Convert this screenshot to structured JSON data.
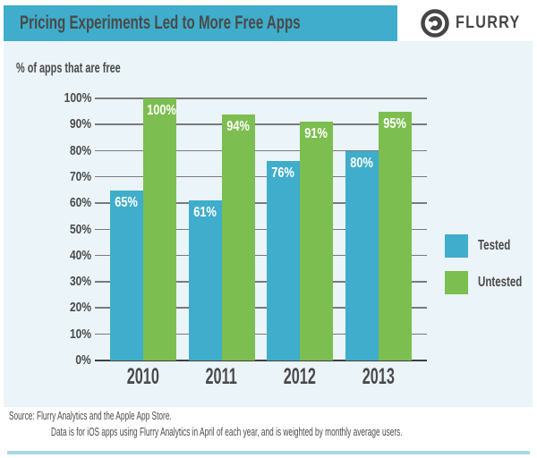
{
  "header": {
    "title": "Pricing Experiments Led to More Free Apps",
    "brand": "FLURRY"
  },
  "chart_data": {
    "type": "bar",
    "title": "Pricing Experiments Led to More Free Apps",
    "ylabel": "% of apps that are free",
    "categories": [
      "2010",
      "2011",
      "2012",
      "2013"
    ],
    "series": [
      {
        "name": "Tested",
        "color": "#3fadcb",
        "values": [
          65,
          61,
          76,
          80
        ]
      },
      {
        "name": "Untested",
        "color": "#7cbe50",
        "values": [
          100,
          94,
          91,
          95
        ]
      }
    ],
    "value_suffix": "%",
    "bar_value_labels": [
      [
        "65%",
        "100%"
      ],
      [
        "61%",
        "94%"
      ],
      [
        "76%",
        "91%"
      ],
      [
        "80%",
        "95%"
      ]
    ],
    "ylim": [
      0,
      100
    ],
    "ytick_step": 10,
    "yticks": [
      "0%",
      "10%",
      "20%",
      "30%",
      "40%",
      "50%",
      "60%",
      "70%",
      "80%",
      "90%",
      "100%"
    ],
    "grid": true,
    "legend_position": "right",
    "legend": [
      "Tested",
      "Untested"
    ]
  },
  "footer": {
    "source_line1": "Source: Flurry Analytics and the Apple App Store.",
    "source_line2": "Data is for iOS apps using Flurry Analytics in April of each year, and is weighted by monthly average users."
  },
  "colors": {
    "banner": "#3fadcb",
    "tested_bar": "#3fadcb",
    "untested_bar": "#7cbe50",
    "panel_background": "#ebf4f8",
    "text_dark": "#4a4a4a",
    "bar_label_text": "#ffffff",
    "gridline": "#7a7a7a",
    "axis_line": "#3f3f3f",
    "bottom_rule": "#a8d8e6",
    "logo": "#454545"
  }
}
